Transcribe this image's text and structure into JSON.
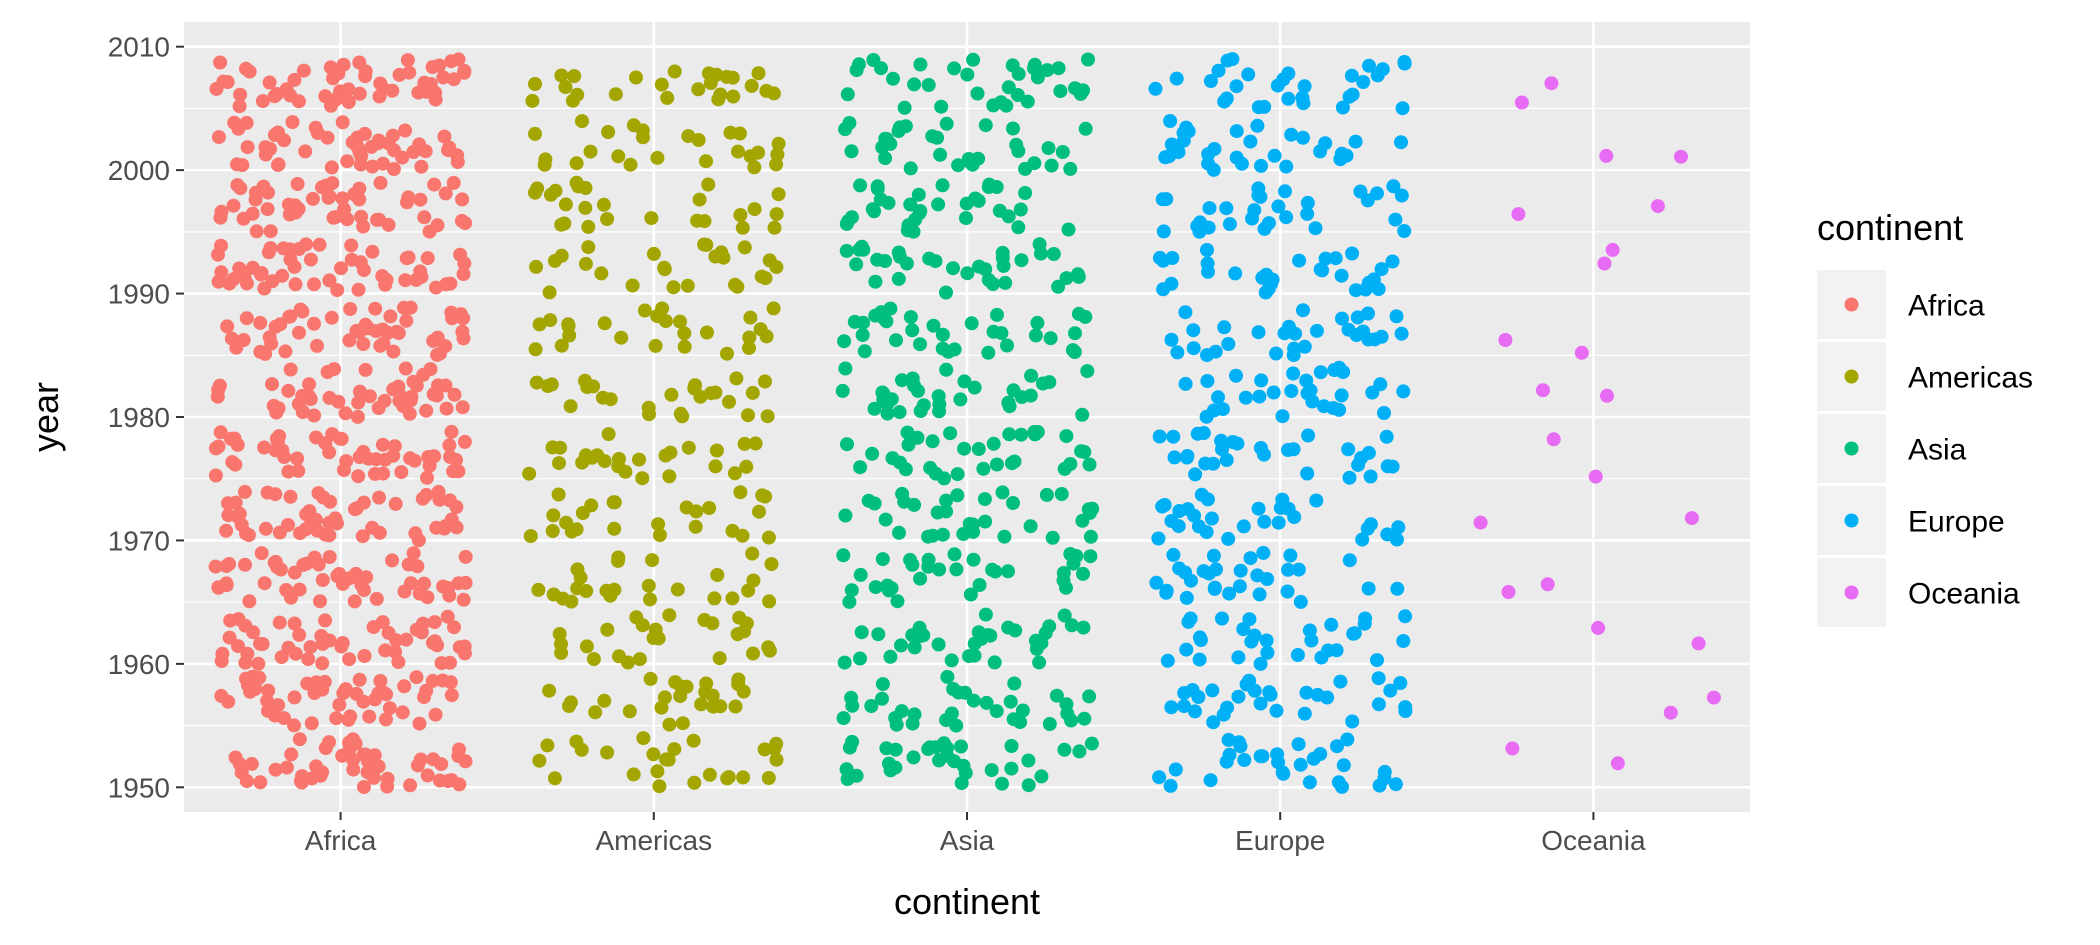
{
  "chart_data": {
    "type": "scatter",
    "jitter": true,
    "xlabel": "continent",
    "ylabel": "year",
    "categories": [
      "Africa",
      "Americas",
      "Asia",
      "Europe",
      "Oceania"
    ],
    "ylim": [
      1948,
      2012
    ],
    "yticks": [
      1950,
      1960,
      1970,
      1980,
      1990,
      2000,
      2010
    ],
    "year_values": [
      1952,
      1957,
      1962,
      1967,
      1972,
      1977,
      1982,
      1987,
      1992,
      1997,
      2002,
      2007
    ],
    "series": [
      {
        "name": "Africa",
        "color": "#F8766D",
        "points_per_year": 52
      },
      {
        "name": "Americas",
        "color": "#A3A500",
        "points_per_year": 25
      },
      {
        "name": "Asia",
        "color": "#00BF7D",
        "points_per_year": 33
      },
      {
        "name": "Europe",
        "color": "#00B0F6",
        "points_per_year": 30
      },
      {
        "name": "Oceania",
        "color": "#E76BF3",
        "points_per_year": 2
      }
    ],
    "panel_background": "#EBEBEB",
    "gridlines": true,
    "legend": {
      "title": "continent",
      "position": "right"
    }
  }
}
